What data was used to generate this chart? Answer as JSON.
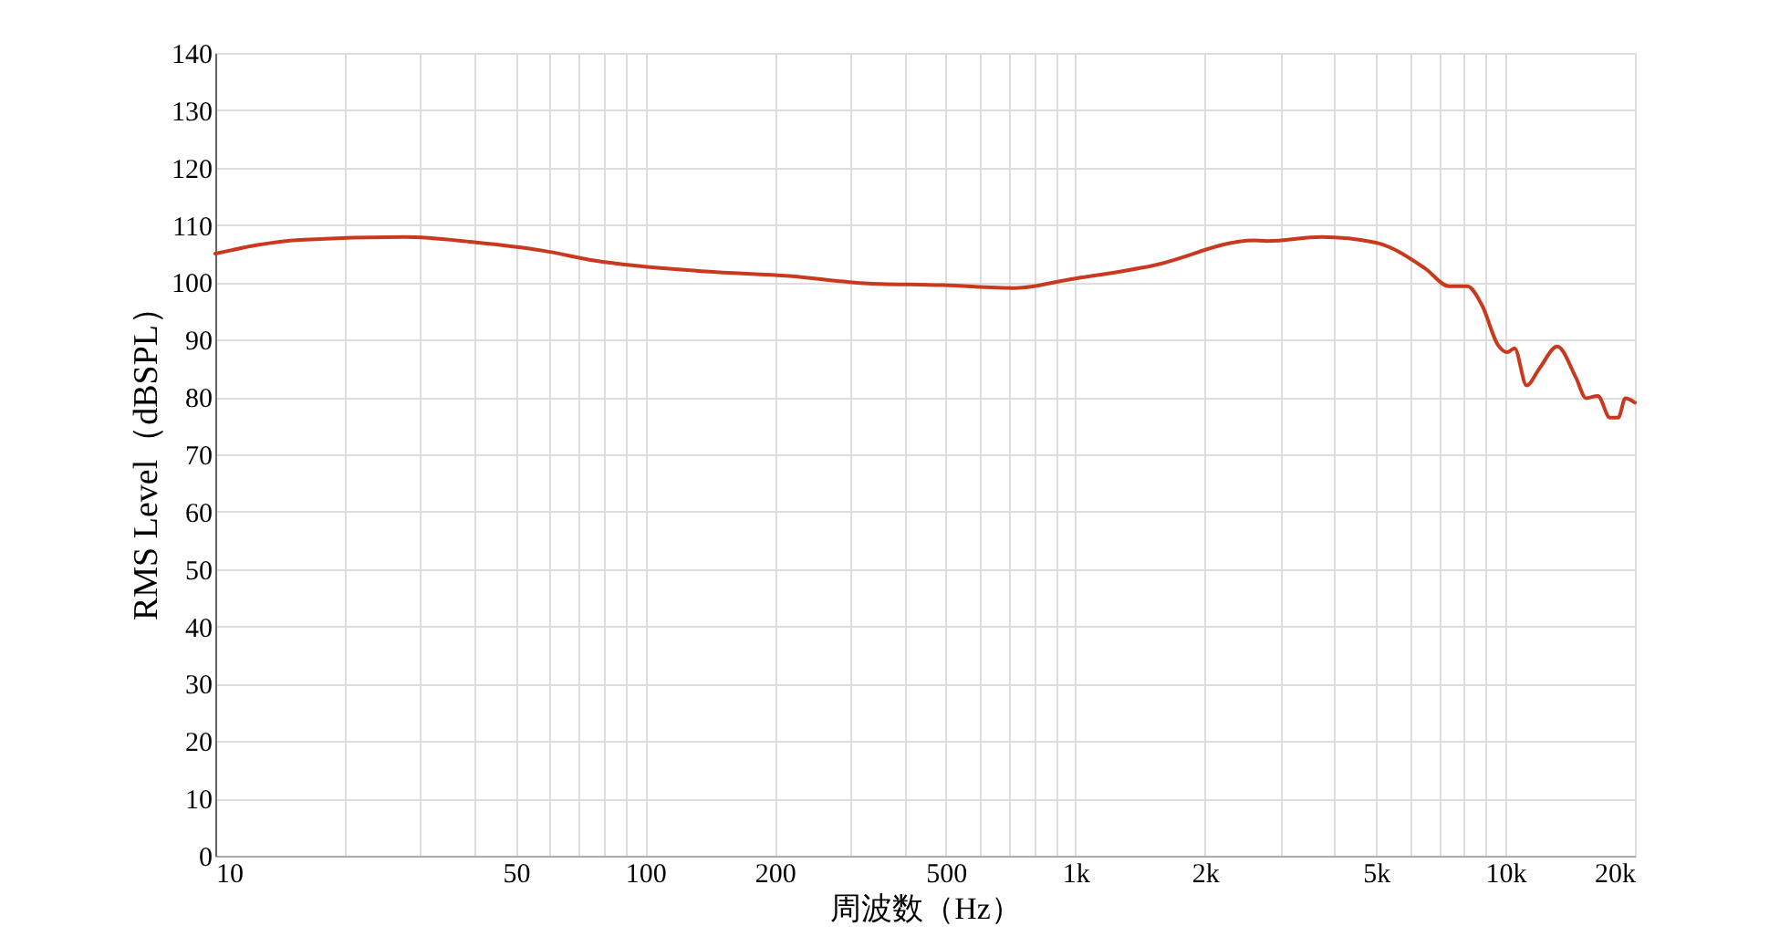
{
  "chart_data": {
    "type": "line",
    "xlabel": "周波数（Hz）",
    "ylabel": "RMS Level（dBSPL）",
    "x": [
      10,
      15.7,
      27.5,
      40,
      58,
      76,
      138,
      216,
      330,
      494,
      725,
      970,
      1510,
      2600,
      2790,
      3730,
      5000,
      6510,
      7400,
      8150,
      8820,
      9620,
      10100,
      10500,
      11200,
      12000,
      13200,
      14600,
      15400,
      16400,
      17500,
      18300,
      19000,
      20000
    ],
    "series": [
      {
        "color": "#c8391e",
        "values": [
          105,
          107.4,
          107.9,
          107,
          105.5,
          103.8,
          101.9,
          101.1,
          99.8,
          99.5,
          99,
          100.5,
          102.9,
          107.3,
          107.2,
          107.9,
          106.9,
          102.4,
          99.3,
          99.3,
          96,
          89,
          87.8,
          88.5,
          82,
          85,
          88.8,
          83.3,
          79.8,
          80.2,
          76.4,
          76.4,
          79.8,
          79
        ]
      }
    ],
    "log": "x",
    "grid": true,
    "marker": "none",
    "line_style": "solid",
    "xlim": [
      10,
      20000
    ],
    "xticks": [
      10,
      {
        "value": 20,
        "label": null
      },
      {
        "value": 30,
        "label": null
      },
      {
        "value": 40,
        "label": null
      },
      50,
      {
        "value": 60,
        "label": null
      },
      {
        "value": 70,
        "label": null
      },
      {
        "value": 80,
        "label": null
      },
      {
        "value": 90,
        "label": null
      },
      100,
      200,
      {
        "value": 300,
        "label": null
      },
      {
        "value": 400,
        "label": null
      },
      500,
      {
        "value": 600,
        "label": null
      },
      {
        "value": 700,
        "label": null
      },
      {
        "value": 800,
        "label": null
      },
      {
        "value": 900,
        "label": null
      },
      {
        "value": 1000,
        "label": "1k"
      },
      {
        "value": 2000,
        "label": "2k"
      },
      {
        "value": 3000,
        "label": null
      },
      {
        "value": 4000,
        "label": null
      },
      {
        "value": 5000,
        "label": "5k"
      },
      {
        "value": 6000,
        "label": null
      },
      {
        "value": 7000,
        "label": null
      },
      {
        "value": 8000,
        "label": null
      },
      {
        "value": 9000,
        "label": null
      },
      {
        "value": 10000,
        "label": "10k"
      },
      {
        "value": 20000,
        "label": "20k"
      }
    ],
    "ylim": [
      0,
      140
    ],
    "yticks": [
      0,
      10,
      20,
      30,
      40,
      50,
      60,
      70,
      80,
      90,
      100,
      110,
      120,
      130,
      140
    ]
  }
}
